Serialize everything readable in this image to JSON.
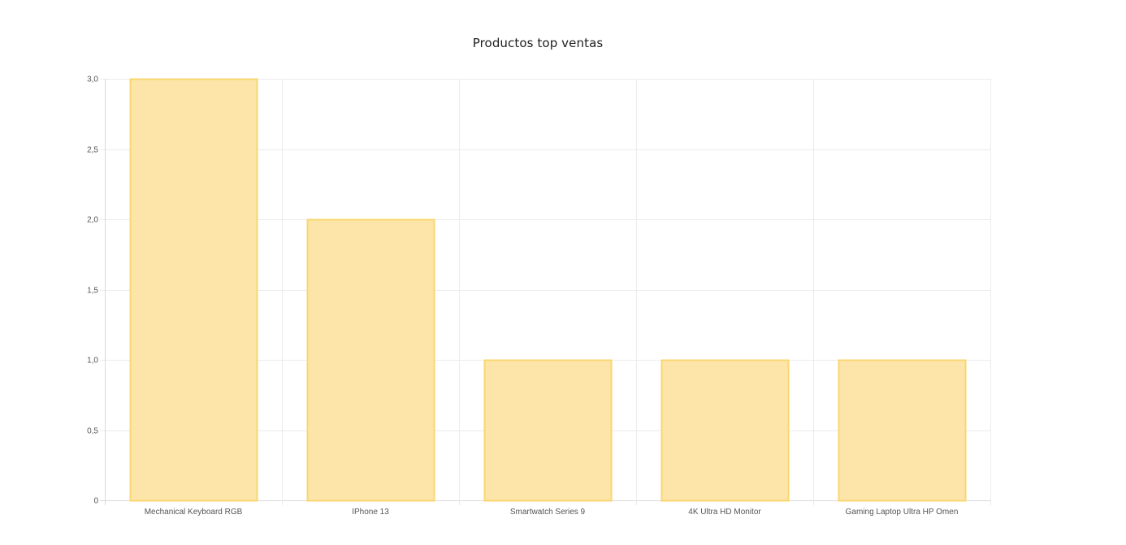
{
  "chart_data": {
    "type": "bar",
    "title": "Productos top ventas",
    "categories": [
      "Mechanical Keyboard RGB",
      "IPhone 13",
      "Smartwatch Series 9",
      "4K Ultra HD Monitor",
      "Gaming Laptop Ultra HP Omen"
    ],
    "values": [
      3,
      2,
      1,
      1,
      1
    ],
    "ylim": [
      0,
      3
    ],
    "yticks": [
      "0",
      "0,5",
      "1,0",
      "1,5",
      "2,0",
      "2,5",
      "3,0"
    ],
    "xlabel": "",
    "ylabel": "",
    "grid": true,
    "legend": "none",
    "colors": {
      "bar_fill": "#fde5aa",
      "bar_border": "#f9d670",
      "grid": "#ebebeb",
      "axis": "#d9d9d9"
    }
  }
}
